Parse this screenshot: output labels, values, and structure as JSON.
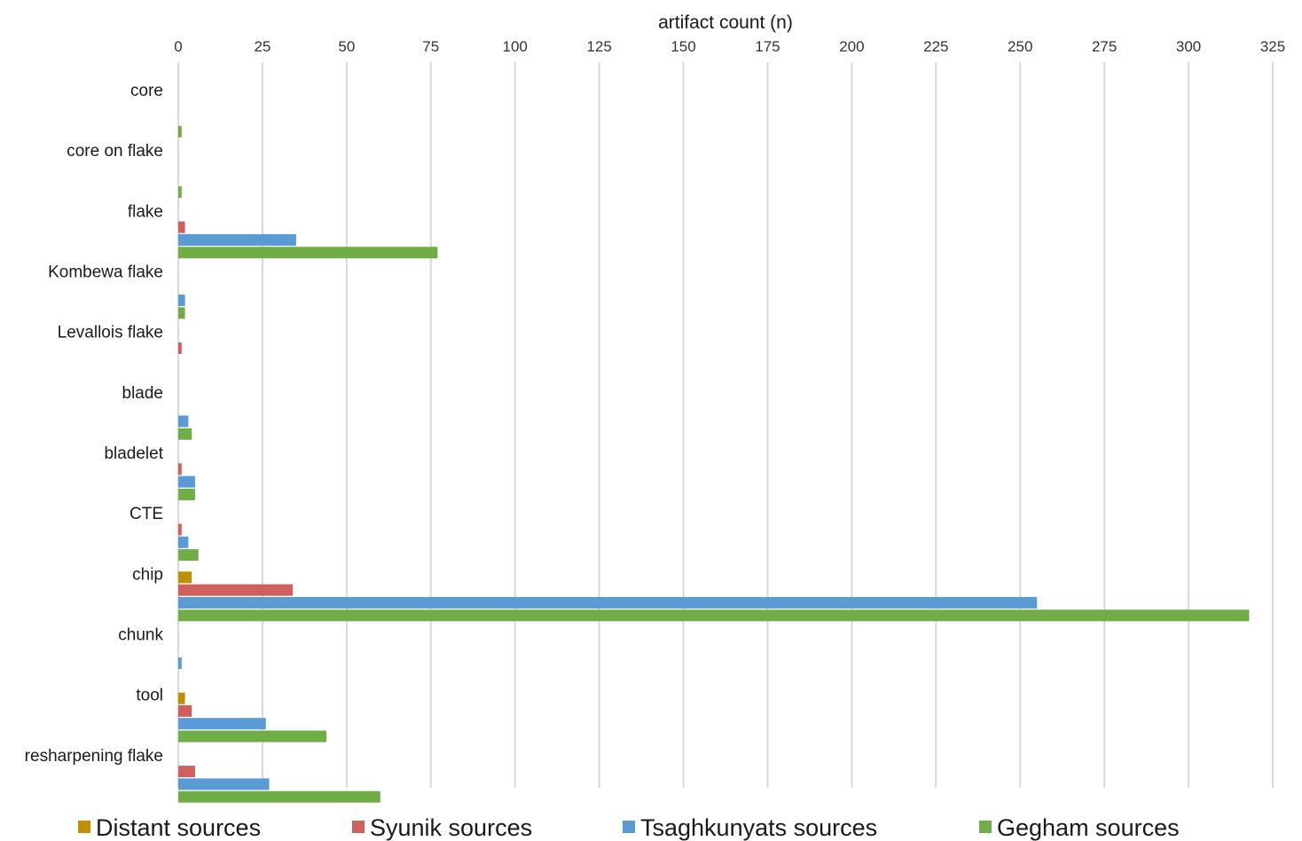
{
  "chart_data": {
    "type": "bar",
    "orientation": "horizontal",
    "title": "",
    "xlabel": "artifact count (n)",
    "ylabel": "",
    "xlim": [
      0,
      325
    ],
    "x_ticks": [
      0,
      25,
      50,
      75,
      100,
      125,
      150,
      175,
      200,
      225,
      250,
      275,
      300,
      325
    ],
    "x_axis_position": "top",
    "grid": "vertical",
    "legend_position": "bottom",
    "categories": [
      "core",
      "core on flake",
      "flake",
      "Kombewa flake",
      "Levallois flake",
      "blade",
      "bladelet",
      "CTE",
      "chip",
      "chunk",
      "tool",
      "resharpening flake"
    ],
    "series": [
      {
        "name": "Distant sources",
        "color": "#bf9000",
        "values": [
          0,
          0,
          0,
          0,
          0,
          0,
          0,
          0,
          4,
          0,
          2,
          0
        ]
      },
      {
        "name": "Syunik sources",
        "color": "#d0605e",
        "values": [
          0,
          0,
          2,
          0,
          1,
          0,
          1,
          1,
          34,
          0,
          4,
          5
        ]
      },
      {
        "name": "Tsaghkunyats sources",
        "color": "#5b9bd5",
        "values": [
          0,
          0,
          35,
          2,
          0,
          3,
          5,
          3,
          255,
          1,
          26,
          27
        ]
      },
      {
        "name": "Gegham sources",
        "color": "#70ad47",
        "values": [
          1,
          1,
          77,
          2,
          0,
          4,
          5,
          6,
          318,
          0,
          44,
          60
        ]
      }
    ]
  }
}
